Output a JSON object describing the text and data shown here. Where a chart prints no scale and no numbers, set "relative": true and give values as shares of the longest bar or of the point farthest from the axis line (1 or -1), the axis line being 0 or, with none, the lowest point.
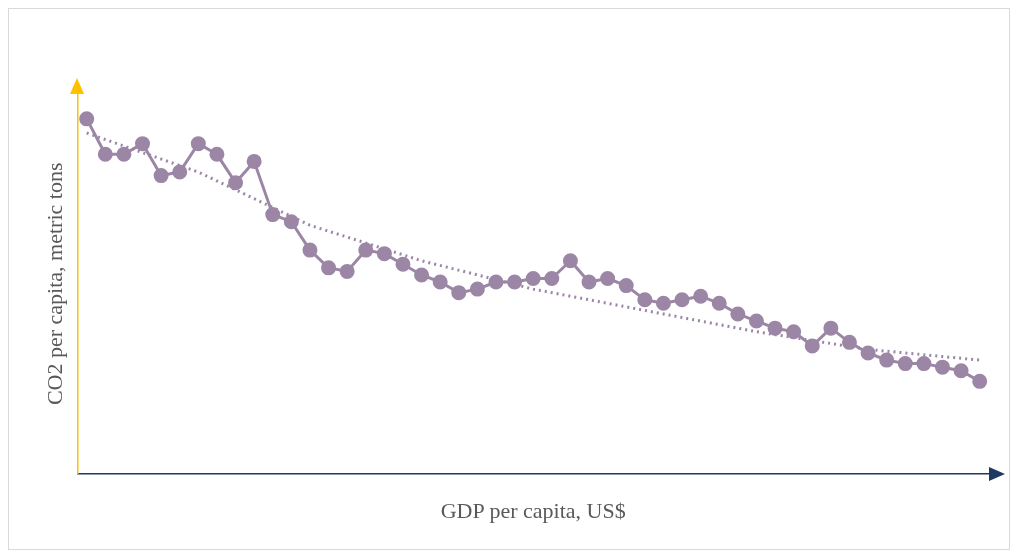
{
  "chart_data": {
    "type": "line",
    "relative": true,
    "xlabel": "GDP per capita, US$",
    "ylabel": "CO2 per capita, metric tons",
    "marker": "circle",
    "grid": false,
    "legend": false,
    "categories": [
      null,
      null,
      null,
      null,
      null,
      null,
      null,
      null,
      null,
      null,
      null,
      null,
      null,
      null,
      null,
      null,
      null,
      null,
      null,
      null,
      null,
      null,
      null,
      null,
      null,
      null,
      null,
      null,
      null,
      null,
      null,
      null,
      null,
      null,
      null,
      null,
      null,
      null,
      null,
      null,
      null,
      null,
      null,
      null,
      null,
      null,
      null,
      null,
      null
    ],
    "series": [
      {
        "color": "#9c86a6",
        "line_style": "solid",
        "values": [
          1,
          0.9,
          0.9,
          0.93,
          0.84,
          0.85,
          0.93,
          0.9,
          0.82,
          0.88,
          0.73,
          0.71,
          0.63,
          0.58,
          0.57,
          0.63,
          0.62,
          0.59,
          0.56,
          0.54,
          0.51,
          0.52,
          0.54,
          0.54,
          0.55,
          0.55,
          0.6,
          0.54,
          0.55,
          0.53,
          0.49,
          0.48,
          0.49,
          0.5,
          0.48,
          0.45,
          0.43,
          0.41,
          0.4,
          0.36,
          0.41,
          0.37,
          0.34,
          0.32,
          0.31,
          0.31,
          0.3,
          0.29,
          0.26
        ]
      },
      {
        "color": "#9c86a6",
        "line_style": "dotted",
        "marker": "none",
        "values": [
          0.96,
          null,
          null,
          null,
          null,
          null,
          0.85,
          null,
          null,
          null,
          null,
          null,
          0.7,
          null,
          null,
          null,
          null,
          null,
          0.6,
          null,
          null,
          null,
          null,
          null,
          0.52,
          null,
          null,
          null,
          null,
          null,
          0.46,
          null,
          null,
          null,
          null,
          null,
          0.4,
          null,
          null,
          null,
          null,
          null,
          0.35,
          null,
          null,
          null,
          null,
          null,
          0.32
        ]
      }
    ]
  }
}
